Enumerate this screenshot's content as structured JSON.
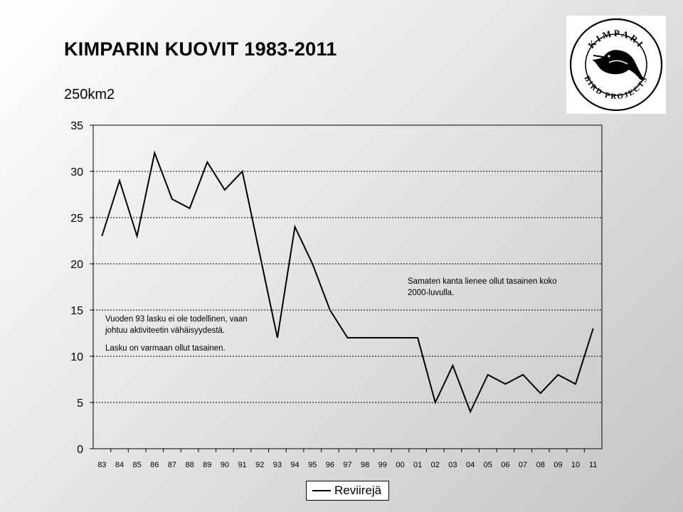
{
  "page": {
    "title": "KIMPARIN  KUOVIT  1983-2011",
    "subtitle": "250km2"
  },
  "logo": {
    "text_top": "KIMPARI",
    "text_bottom": "BIRD PROJECTS"
  },
  "chart_data": {
    "type": "line",
    "categories": [
      "83",
      "84",
      "85",
      "86",
      "87",
      "88",
      "89",
      "90",
      "91",
      "92",
      "93",
      "94",
      "95",
      "96",
      "97",
      "98",
      "99",
      "00",
      "01",
      "02",
      "03",
      "04",
      "05",
      "06",
      "07",
      "08",
      "09",
      "10",
      "11"
    ],
    "series": [
      {
        "name": "Reviirejä",
        "values": [
          23,
          29,
          23,
          32,
          27,
          26,
          31,
          28,
          30,
          21,
          12,
          24,
          20,
          15,
          12,
          12,
          12,
          12,
          12,
          5,
          9,
          4,
          8,
          7,
          8,
          6,
          8,
          7,
          13
        ],
        "color": "#000000"
      }
    ],
    "ylim": [
      0,
      35
    ],
    "yticks": [
      0,
      5,
      10,
      15,
      20,
      25,
      30,
      35
    ],
    "grid": "horizontal-dashed",
    "legend": "bottom",
    "annotations": [
      {
        "lines": [
          "Vuoden 93 lasku ei ole todellinen, vaan",
          "johtuu aktiviteetin vähäisyydestä."
        ]
      },
      {
        "lines": [
          "Lasku on varmaan  ollut tasainen."
        ]
      },
      {
        "lines": [
          "Samaten kanta lienee ollut tasainen koko",
          "2000-luvulla."
        ]
      }
    ]
  }
}
